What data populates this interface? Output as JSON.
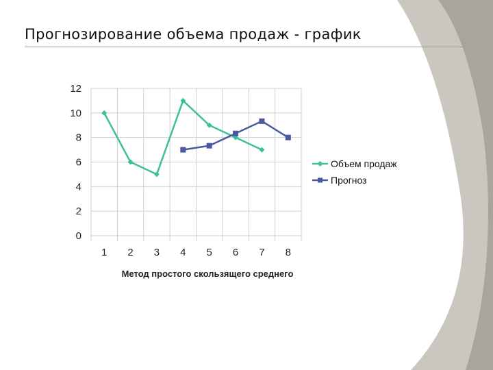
{
  "slide": {
    "title": "Прогнозирование объема продаж - график"
  },
  "colors": {
    "sales": "#3dbf97",
    "forecast": "#4a5a9e",
    "grid": "#cfcfcf",
    "background": "#ffffff",
    "swoosh": "#c9c7bf",
    "swoosh_dark": "#a8a69c"
  },
  "chart_data": {
    "type": "line",
    "x": [
      1,
      2,
      3,
      4,
      5,
      6,
      7,
      8
    ],
    "xlabel": "Метод простого скользящего среднего",
    "ylabel": "",
    "ylim": [
      0,
      12
    ],
    "yticks": [
      0,
      2,
      4,
      6,
      8,
      10,
      12
    ],
    "grid": true,
    "legend_position": "right",
    "series": [
      {
        "name": "Объем продаж",
        "marker": "diamond",
        "values": [
          10,
          6,
          5,
          11,
          9,
          8,
          7,
          null
        ]
      },
      {
        "name": "Прогноз",
        "marker": "square",
        "values": [
          null,
          null,
          null,
          7,
          7.33,
          8.33,
          9.33,
          8
        ]
      }
    ]
  }
}
